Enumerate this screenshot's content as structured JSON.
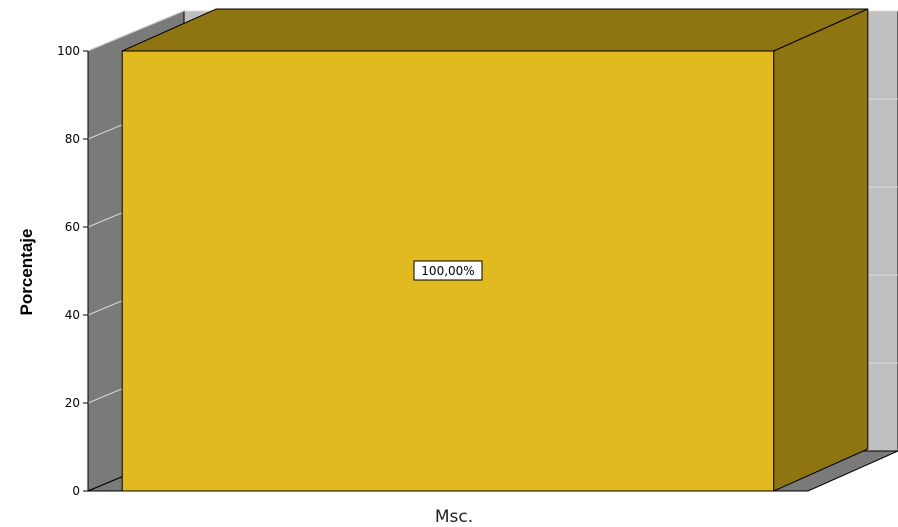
{
  "chart_data": {
    "type": "bar",
    "three_d": true,
    "categories": [
      "Msc."
    ],
    "values": [
      100
    ],
    "data_labels": [
      "100,00%"
    ],
    "ylabel": "Porcentaje",
    "xlabel": "",
    "ylim": [
      0,
      100
    ],
    "yticks": [
      "0",
      "20",
      "40",
      "60",
      "80",
      "100"
    ],
    "grid": true,
    "legend": "none"
  },
  "colors": {
    "bar_front": "#e0ba1f",
    "bar_top": "#8e7512",
    "bar_side": "#8e7512",
    "back_wall": "#c0c0c0",
    "side_wall": "#7a7a7a",
    "floor": "#7a7a7a",
    "gridline": "#d8d8d8"
  }
}
